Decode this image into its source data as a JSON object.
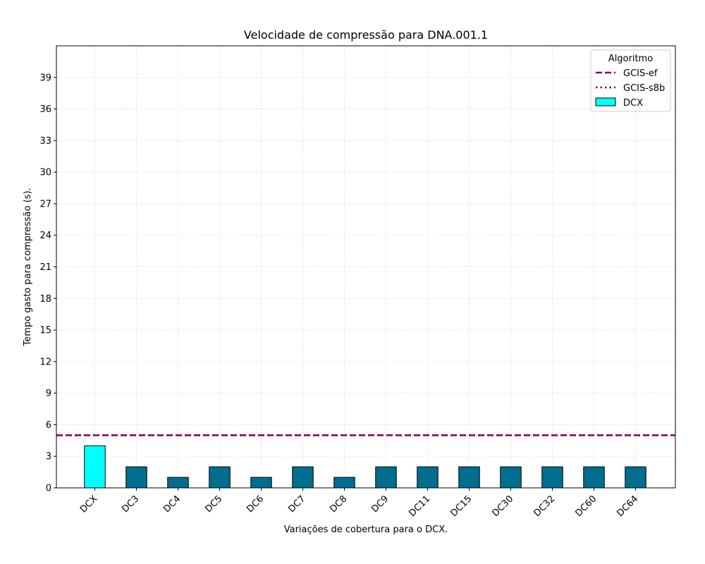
{
  "chart_data": {
    "type": "bar",
    "title": "Velocidade de compressão para  DNA.001.1",
    "xlabel": "Variações de cobertura para o DCX.",
    "ylabel": "Tempo gasto para compressão (s).",
    "categories": [
      "DCX",
      "DC3",
      "DC4",
      "DC5",
      "DC6",
      "DC7",
      "DC8",
      "DC9",
      "DC11",
      "DC15",
      "DC30",
      "DC32",
      "DC60",
      "DC64"
    ],
    "values": [
      4,
      2,
      1,
      2,
      1,
      2,
      1,
      2,
      2,
      2,
      2,
      2,
      2,
      2
    ],
    "bar_colors": [
      "#00ffff",
      "#006e8f",
      "#006e8f",
      "#006e8f",
      "#006e8f",
      "#006e8f",
      "#006e8f",
      "#006e8f",
      "#006e8f",
      "#006e8f",
      "#006e8f",
      "#006e8f",
      "#006e8f",
      "#006e8f"
    ],
    "ylim": [
      0,
      42
    ],
    "yticks": [
      0,
      3,
      6,
      9,
      12,
      15,
      18,
      21,
      24,
      27,
      30,
      33,
      36,
      39
    ],
    "grid": true,
    "reference_lines": [
      {
        "name": "GCIS-ef",
        "value": 5,
        "style": "dashed",
        "color": "#8b0052"
      },
      {
        "name": "GCIS-s8b",
        "value": 5,
        "style": "dotted",
        "color": "#8b0052"
      }
    ],
    "legend": {
      "title": "Algoritmo",
      "placement": "top-right",
      "entries": [
        {
          "label": "GCIS-ef",
          "kind": "dashed-line",
          "color": "#8b0052"
        },
        {
          "label": "GCIS-s8b",
          "kind": "dotted-line",
          "color": "#8b0052"
        },
        {
          "label": "DCX",
          "kind": "patch",
          "color": "#00ffff"
        }
      ]
    }
  }
}
